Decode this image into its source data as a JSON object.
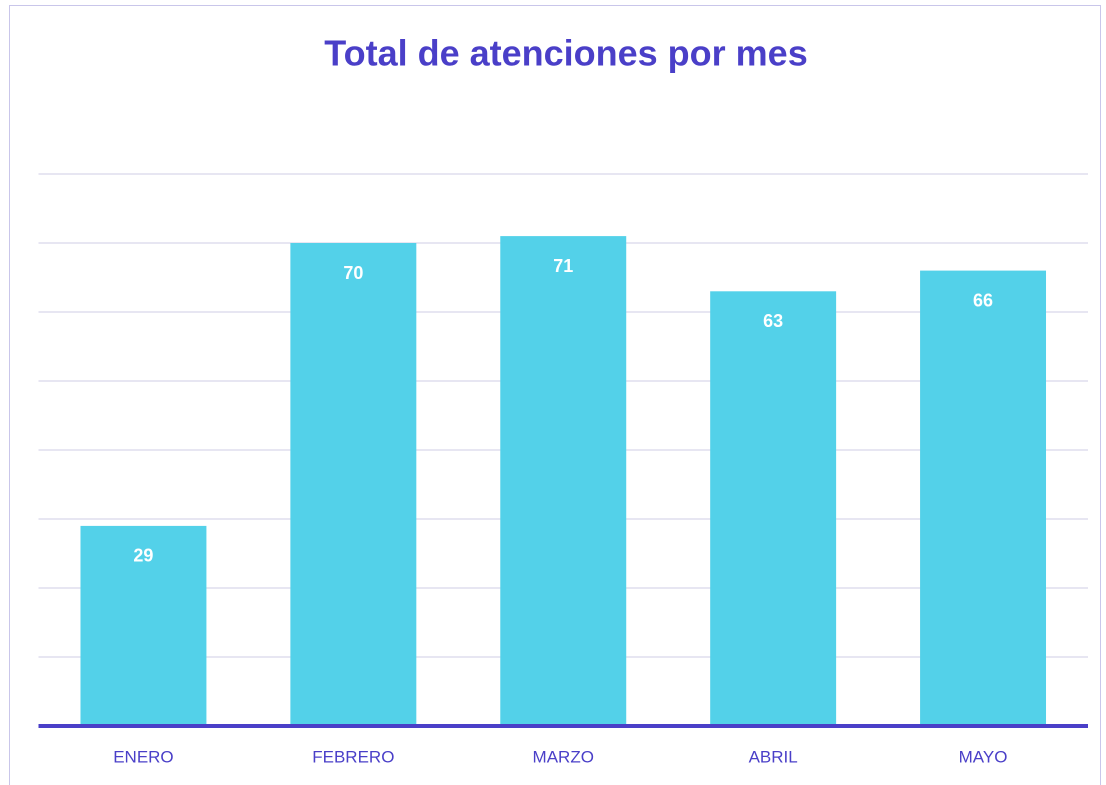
{
  "chart_data": {
    "type": "bar",
    "title": "Total de atenciones por mes",
    "categories": [
      "ENERO",
      "FEBRERO",
      "MARZO",
      "ABRIL",
      "MAYO"
    ],
    "values": [
      29,
      70,
      71,
      63,
      66
    ],
    "color": "#53d1e9",
    "ylim": [
      0,
      80
    ],
    "yticks": [
      0,
      10,
      20,
      30,
      40,
      50,
      60,
      70,
      80
    ],
    "grid": true
  }
}
